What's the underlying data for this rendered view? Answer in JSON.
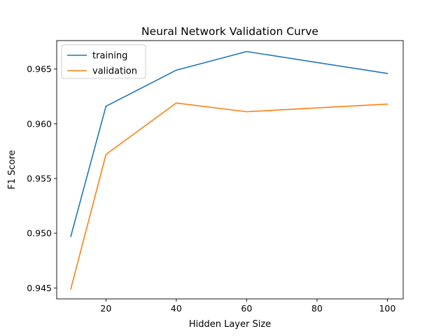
{
  "chart_data": {
    "type": "line",
    "title": "Neural Network Validation Curve",
    "xlabel": "Hidden Layer Size",
    "ylabel": "F1 Score",
    "x": [
      10,
      20,
      40,
      60,
      100
    ],
    "series": [
      {
        "name": "training",
        "color": "#1f77b4",
        "values": [
          0.9497,
          0.9616,
          0.9649,
          0.9666,
          0.9646
        ]
      },
      {
        "name": "validation",
        "color": "#ff7f0e",
        "values": [
          0.9449,
          0.9572,
          0.9619,
          0.9611,
          0.9618
        ]
      }
    ],
    "xlim": [
      6,
      104.5
    ],
    "ylim": [
      0.944,
      0.9676
    ],
    "xticks": [
      "20",
      "40",
      "60",
      "80",
      "100"
    ],
    "yticks": [
      "0.945",
      "0.950",
      "0.955",
      "0.960",
      "0.965"
    ],
    "grid": false,
    "legend_position": "upper-left"
  }
}
